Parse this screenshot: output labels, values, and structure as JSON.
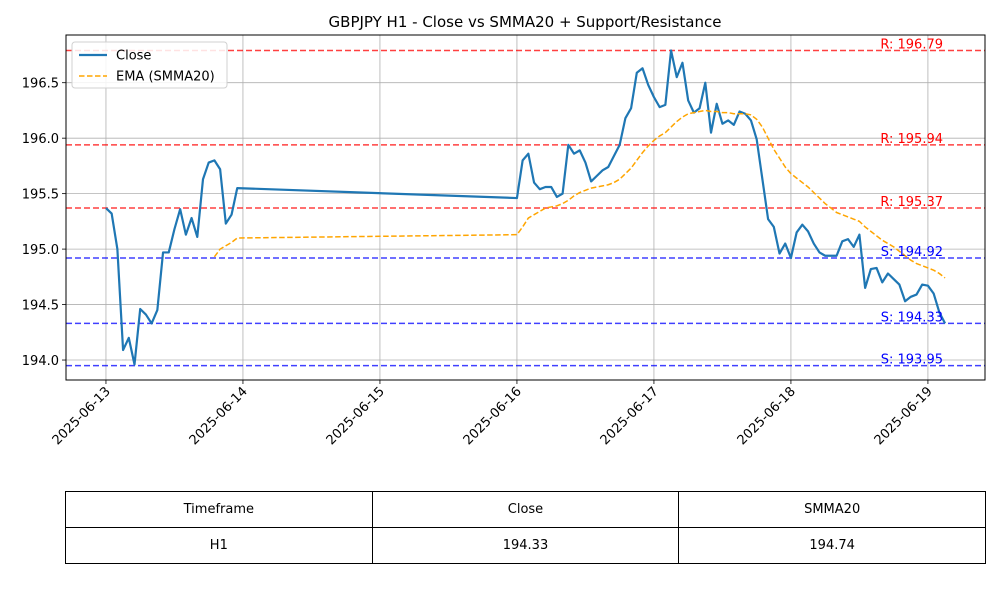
{
  "chart_data": {
    "type": "line",
    "title": "GBPJPY H1 - Close vs SMMA20 + Support/Resistance",
    "xlabel": "",
    "ylabel": "",
    "xlim": [
      "2025-06-12T17:00",
      "2025-06-19T10:00"
    ],
    "ylim": [
      193.82,
      196.93
    ],
    "x_ticks": [
      "2025-06-13",
      "2025-06-14",
      "2025-06-15",
      "2025-06-16",
      "2025-06-17",
      "2025-06-18",
      "2025-06-19"
    ],
    "y_ticks": [
      194.0,
      194.5,
      195.0,
      195.5,
      196.0,
      196.5
    ],
    "grid": true,
    "legend": "top-left",
    "series": [
      {
        "name": "Close",
        "color": "#1f77b4",
        "style": "solid",
        "points": [
          [
            "2025-06-13T00:00",
            195.37
          ],
          [
            "2025-06-13T01:00",
            195.32
          ],
          [
            "2025-06-13T02:00",
            195.0
          ],
          [
            "2025-06-13T03:00",
            194.09
          ],
          [
            "2025-06-13T04:00",
            194.2
          ],
          [
            "2025-06-13T05:00",
            193.96
          ],
          [
            "2025-06-13T06:00",
            194.46
          ],
          [
            "2025-06-13T07:00",
            194.41
          ],
          [
            "2025-06-13T08:00",
            194.33
          ],
          [
            "2025-06-13T09:00",
            194.45
          ],
          [
            "2025-06-13T10:00",
            194.97
          ],
          [
            "2025-06-13T11:00",
            194.97
          ],
          [
            "2025-06-13T12:00",
            195.18
          ],
          [
            "2025-06-13T13:00",
            195.36
          ],
          [
            "2025-06-13T14:00",
            195.13
          ],
          [
            "2025-06-13T15:00",
            195.28
          ],
          [
            "2025-06-13T16:00",
            195.11
          ],
          [
            "2025-06-13T17:00",
            195.63
          ],
          [
            "2025-06-13T18:00",
            195.78
          ],
          [
            "2025-06-13T19:00",
            195.8
          ],
          [
            "2025-06-13T20:00",
            195.72
          ],
          [
            "2025-06-13T21:00",
            195.23
          ],
          [
            "2025-06-13T22:00",
            195.31
          ],
          [
            "2025-06-13T23:00",
            195.55
          ],
          [
            "2025-06-16T00:00",
            195.46
          ],
          [
            "2025-06-16T01:00",
            195.8
          ],
          [
            "2025-06-16T02:00",
            195.86
          ],
          [
            "2025-06-16T03:00",
            195.6
          ],
          [
            "2025-06-16T04:00",
            195.54
          ],
          [
            "2025-06-16T05:00",
            195.56
          ],
          [
            "2025-06-16T06:00",
            195.56
          ],
          [
            "2025-06-16T07:00",
            195.47
          ],
          [
            "2025-06-16T08:00",
            195.5
          ],
          [
            "2025-06-16T09:00",
            195.94
          ],
          [
            "2025-06-16T10:00",
            195.86
          ],
          [
            "2025-06-16T11:00",
            195.89
          ],
          [
            "2025-06-16T12:00",
            195.78
          ],
          [
            "2025-06-16T13:00",
            195.61
          ],
          [
            "2025-06-16T14:00",
            195.66
          ],
          [
            "2025-06-16T15:00",
            195.71
          ],
          [
            "2025-06-16T16:00",
            195.74
          ],
          [
            "2025-06-16T17:00",
            195.84
          ],
          [
            "2025-06-16T18:00",
            195.94
          ],
          [
            "2025-06-16T19:00",
            196.18
          ],
          [
            "2025-06-16T20:00",
            196.27
          ],
          [
            "2025-06-16T21:00",
            196.59
          ],
          [
            "2025-06-16T22:00",
            196.63
          ],
          [
            "2025-06-16T23:00",
            196.48
          ],
          [
            "2025-06-17T00:00",
            196.37
          ],
          [
            "2025-06-17T01:00",
            196.28
          ],
          [
            "2025-06-17T02:00",
            196.3
          ],
          [
            "2025-06-17T03:00",
            196.79
          ],
          [
            "2025-06-17T04:00",
            196.55
          ],
          [
            "2025-06-17T05:00",
            196.68
          ],
          [
            "2025-06-17T06:00",
            196.34
          ],
          [
            "2025-06-17T07:00",
            196.23
          ],
          [
            "2025-06-17T08:00",
            196.27
          ],
          [
            "2025-06-17T09:00",
            196.5
          ],
          [
            "2025-06-17T10:00",
            196.05
          ],
          [
            "2025-06-17T11:00",
            196.31
          ],
          [
            "2025-06-17T12:00",
            196.13
          ],
          [
            "2025-06-17T13:00",
            196.16
          ],
          [
            "2025-06-17T14:00",
            196.12
          ],
          [
            "2025-06-17T15:00",
            196.24
          ],
          [
            "2025-06-17T16:00",
            196.22
          ],
          [
            "2025-06-17T17:00",
            196.16
          ],
          [
            "2025-06-17T18:00",
            195.99
          ],
          [
            "2025-06-17T19:00",
            195.63
          ],
          [
            "2025-06-17T20:00",
            195.27
          ],
          [
            "2025-06-17T21:00",
            195.2
          ],
          [
            "2025-06-17T22:00",
            194.96
          ],
          [
            "2025-06-17T23:00",
            195.05
          ],
          [
            "2025-06-18T00:00",
            194.92
          ],
          [
            "2025-06-18T01:00",
            195.15
          ],
          [
            "2025-06-18T02:00",
            195.22
          ],
          [
            "2025-06-18T03:00",
            195.16
          ],
          [
            "2025-06-18T04:00",
            195.05
          ],
          [
            "2025-06-18T05:00",
            194.97
          ],
          [
            "2025-06-18T06:00",
            194.94
          ],
          [
            "2025-06-18T07:00",
            194.94
          ],
          [
            "2025-06-18T08:00",
            194.94
          ],
          [
            "2025-06-18T09:00",
            195.07
          ],
          [
            "2025-06-18T10:00",
            195.09
          ],
          [
            "2025-06-18T11:00",
            195.02
          ],
          [
            "2025-06-18T12:00",
            195.13
          ],
          [
            "2025-06-18T13:00",
            194.65
          ],
          [
            "2025-06-18T14:00",
            194.82
          ],
          [
            "2025-06-18T15:00",
            194.83
          ],
          [
            "2025-06-18T16:00",
            194.7
          ],
          [
            "2025-06-18T17:00",
            194.78
          ],
          [
            "2025-06-18T18:00",
            194.73
          ],
          [
            "2025-06-18T19:00",
            194.68
          ],
          [
            "2025-06-18T20:00",
            194.53
          ],
          [
            "2025-06-18T21:00",
            194.57
          ],
          [
            "2025-06-18T22:00",
            194.59
          ],
          [
            "2025-06-18T23:00",
            194.68
          ],
          [
            "2025-06-19T00:00",
            194.67
          ],
          [
            "2025-06-19T01:00",
            194.6
          ],
          [
            "2025-06-19T02:00",
            194.43
          ],
          [
            "2025-06-19T03:00",
            194.33
          ]
        ]
      },
      {
        "name": "EMA (SMMA20)",
        "color": "#ffa500",
        "style": "dashed",
        "points": [
          [
            "2025-06-13T19:00",
            194.93
          ],
          [
            "2025-06-13T20:00",
            195.0
          ],
          [
            "2025-06-13T21:00",
            195.03
          ],
          [
            "2025-06-13T22:00",
            195.06
          ],
          [
            "2025-06-13T23:00",
            195.1
          ],
          [
            "2025-06-16T00:00",
            195.13
          ],
          [
            "2025-06-16T01:00",
            195.2
          ],
          [
            "2025-06-16T02:00",
            195.28
          ],
          [
            "2025-06-16T03:00",
            195.31
          ],
          [
            "2025-06-16T04:00",
            195.34
          ],
          [
            "2025-06-16T05:00",
            195.37
          ],
          [
            "2025-06-16T06:00",
            195.38
          ],
          [
            "2025-06-16T07:00",
            195.39
          ],
          [
            "2025-06-16T08:00",
            195.41
          ],
          [
            "2025-06-16T09:00",
            195.44
          ],
          [
            "2025-06-16T10:00",
            195.48
          ],
          [
            "2025-06-16T11:00",
            195.51
          ],
          [
            "2025-06-16T12:00",
            195.53
          ],
          [
            "2025-06-16T13:00",
            195.55
          ],
          [
            "2025-06-16T14:00",
            195.56
          ],
          [
            "2025-06-16T15:00",
            195.57
          ],
          [
            "2025-06-16T16:00",
            195.58
          ],
          [
            "2025-06-16T17:00",
            195.6
          ],
          [
            "2025-06-16T18:00",
            195.63
          ],
          [
            "2025-06-16T19:00",
            195.68
          ],
          [
            "2025-06-16T20:00",
            195.73
          ],
          [
            "2025-06-16T21:00",
            195.8
          ],
          [
            "2025-06-16T22:00",
            195.87
          ],
          [
            "2025-06-16T23:00",
            195.93
          ],
          [
            "2025-06-17T00:00",
            195.98
          ],
          [
            "2025-06-17T01:00",
            196.02
          ],
          [
            "2025-06-17T02:00",
            196.05
          ],
          [
            "2025-06-17T03:00",
            196.1
          ],
          [
            "2025-06-17T04:00",
            196.15
          ],
          [
            "2025-06-17T05:00",
            196.19
          ],
          [
            "2025-06-17T06:00",
            196.22
          ],
          [
            "2025-06-17T07:00",
            196.23
          ],
          [
            "2025-06-17T08:00",
            196.24
          ],
          [
            "2025-06-17T09:00",
            196.25
          ],
          [
            "2025-06-17T10:00",
            196.24
          ],
          [
            "2025-06-17T11:00",
            196.24
          ],
          [
            "2025-06-17T12:00",
            196.23
          ],
          [
            "2025-06-17T13:00",
            196.23
          ],
          [
            "2025-06-17T14:00",
            196.22
          ],
          [
            "2025-06-17T15:00",
            196.22
          ],
          [
            "2025-06-17T16:00",
            196.22
          ],
          [
            "2025-06-17T17:00",
            196.21
          ],
          [
            "2025-06-17T18:00",
            196.17
          ],
          [
            "2025-06-17T19:00",
            196.1
          ],
          [
            "2025-06-17T20:00",
            196.0
          ],
          [
            "2025-06-17T21:00",
            195.9
          ],
          [
            "2025-06-17T22:00",
            195.82
          ],
          [
            "2025-06-17T23:00",
            195.74
          ],
          [
            "2025-06-18T00:00",
            195.68
          ],
          [
            "2025-06-18T01:00",
            195.64
          ],
          [
            "2025-06-18T02:00",
            195.6
          ],
          [
            "2025-06-18T03:00",
            195.56
          ],
          [
            "2025-06-18T04:00",
            195.51
          ],
          [
            "2025-06-18T05:00",
            195.46
          ],
          [
            "2025-06-18T06:00",
            195.41
          ],
          [
            "2025-06-18T07:00",
            195.37
          ],
          [
            "2025-06-18T08:00",
            195.33
          ],
          [
            "2025-06-18T09:00",
            195.31
          ],
          [
            "2025-06-18T10:00",
            195.29
          ],
          [
            "2025-06-18T11:00",
            195.27
          ],
          [
            "2025-06-18T12:00",
            195.25
          ],
          [
            "2025-06-18T13:00",
            195.2
          ],
          [
            "2025-06-18T14:00",
            195.16
          ],
          [
            "2025-06-18T15:00",
            195.12
          ],
          [
            "2025-06-18T16:00",
            195.08
          ],
          [
            "2025-06-18T17:00",
            195.05
          ],
          [
            "2025-06-18T18:00",
            195.02
          ],
          [
            "2025-06-18T19:00",
            194.98
          ],
          [
            "2025-06-18T20:00",
            194.94
          ],
          [
            "2025-06-18T21:00",
            194.9
          ],
          [
            "2025-06-18T22:00",
            194.87
          ],
          [
            "2025-06-18T23:00",
            194.85
          ],
          [
            "2025-06-19T00:00",
            194.83
          ],
          [
            "2025-06-19T01:00",
            194.81
          ],
          [
            "2025-06-19T02:00",
            194.78
          ],
          [
            "2025-06-19T03:00",
            194.74
          ]
        ]
      }
    ],
    "levels": [
      {
        "value": 196.79,
        "label": "R: 196.79",
        "color": "#ff0000"
      },
      {
        "value": 195.94,
        "label": "R: 195.94",
        "color": "#ff0000"
      },
      {
        "value": 195.37,
        "label": "R: 195.37",
        "color": "#ff0000"
      },
      {
        "value": 194.92,
        "label": "S: 194.92",
        "color": "#0000ff"
      },
      {
        "value": 194.33,
        "label": "S: 194.33",
        "color": "#0000ff"
      },
      {
        "value": 193.95,
        "label": "S: 193.95",
        "color": "#0000ff"
      }
    ]
  },
  "summary_table": {
    "headers": [
      "Timeframe",
      "Close",
      "SMMA20"
    ],
    "row": [
      "H1",
      "194.33",
      "194.74"
    ]
  }
}
